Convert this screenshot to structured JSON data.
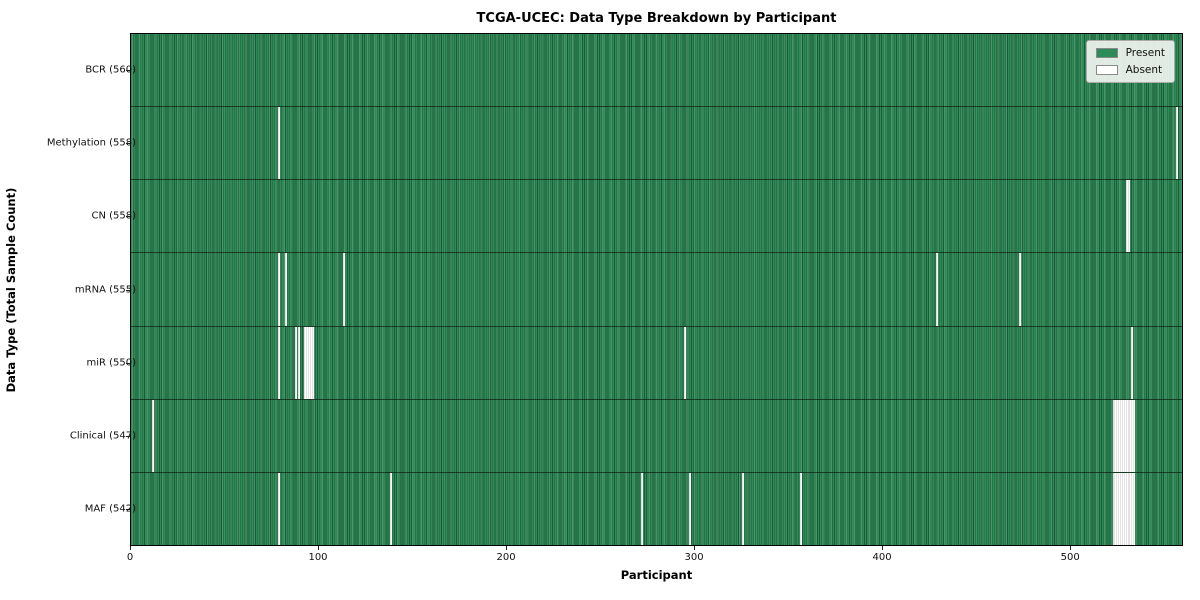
{
  "title": "TCGA-UCEC: Data Type Breakdown by Participant",
  "legend": {
    "present_label": "Present",
    "absent_label": "Absent"
  },
  "colors": {
    "present": "#2e8b57",
    "present_edge": "#1d5c3a",
    "absent": "#ffffff",
    "legend_bg": "#f0f4f0"
  },
  "chart_data": {
    "type": "heatmap",
    "title": "TCGA-UCEC: Data Type Breakdown by Participant",
    "xlabel": "Participant",
    "ylabel": "Data Type (Total Sample Count)",
    "legend_entries": [
      "Present",
      "Absent"
    ],
    "legend_position": "upper right",
    "x_ticks": [
      0,
      100,
      200,
      300,
      400,
      500
    ],
    "x_range": [
      0,
      560
    ],
    "total_participants": 560,
    "grid": false,
    "rows": [
      {
        "name": "BCR",
        "label": "BCR (560)",
        "present_count": 560,
        "absent_participants": []
      },
      {
        "name": "Methylation",
        "label": "Methylation (558)",
        "present_count": 558,
        "absent_participants": [
          78,
          556
        ]
      },
      {
        "name": "CN",
        "label": "CN (558)",
        "present_count": 558,
        "absent_participants": [
          529,
          530
        ]
      },
      {
        "name": "mRNA",
        "label": "mRNA (555)",
        "present_count": 555,
        "absent_participants": [
          78,
          82,
          113,
          428,
          472
        ]
      },
      {
        "name": "miR",
        "label": "miR (550)",
        "present_count": 550,
        "absent_participants": [
          78,
          87,
          89,
          92,
          93,
          94,
          95,
          96,
          294,
          532
        ]
      },
      {
        "name": "Clinical",
        "label": "Clinical (547)",
        "present_count": 547,
        "absent_participants": [
          11,
          522,
          523,
          524,
          525,
          526,
          527,
          528,
          529,
          530,
          531,
          532,
          533
        ]
      },
      {
        "name": "MAF",
        "label": "MAF (542)",
        "present_count": 542,
        "absent_participants": [
          78,
          138,
          271,
          297,
          325,
          356,
          522,
          523,
          524,
          525,
          526,
          527,
          528,
          529,
          530,
          531,
          532,
          533
        ]
      }
    ]
  }
}
